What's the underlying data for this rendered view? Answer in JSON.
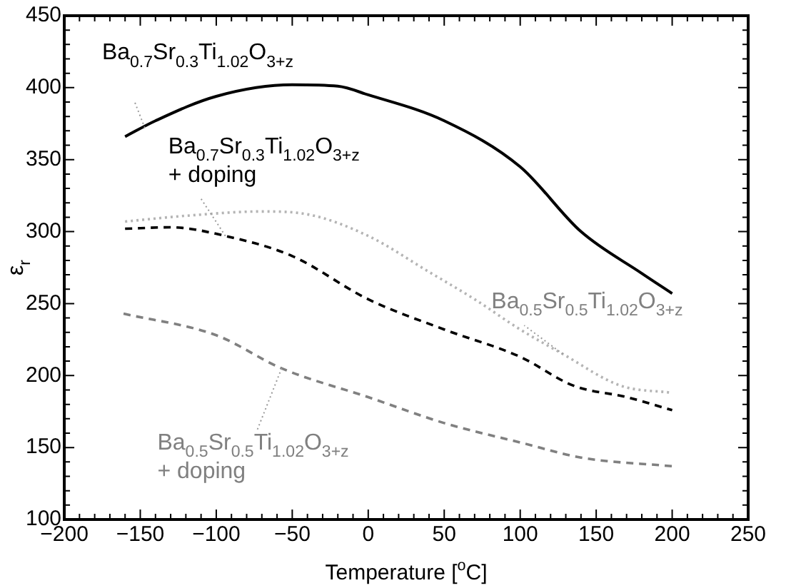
{
  "chart_data": {
    "type": "line",
    "xlabel": "Temperature [$^{o}$C]",
    "ylabel": "ε$_{r}$",
    "xlim": [
      -200,
      250
    ],
    "xticks": [
      -200,
      -150,
      -100,
      -50,
      0,
      50,
      100,
      150,
      200,
      250
    ],
    "ylim": [
      100,
      450
    ],
    "yticks": [
      100,
      150,
      200,
      250,
      300,
      350,
      400,
      450
    ],
    "grid": false,
    "legend": false,
    "marker": "none",
    "series": [
      {
        "color": "#000000",
        "line_style": "solid",
        "x": [
          -160,
          -140,
          -100,
          -50,
          -20,
          0,
          50,
          100,
          140,
          180,
          200
        ],
        "values": [
          366,
          377,
          394,
          402,
          401,
          395,
          377,
          345,
          300,
          271,
          257
        ]
      },
      {
        "color": "#000000",
        "line_style": "dashed",
        "x": [
          -160,
          -130,
          -94,
          -50,
          0,
          50,
          100,
          135,
          170,
          200
        ],
        "values": [
          302,
          303,
          297,
          283,
          253,
          232,
          213,
          193,
          185,
          176
        ]
      },
      {
        "color": "#b4b4b4",
        "line_style": "dotted",
        "x": [
          -160,
          -120,
          -70,
          -40,
          0,
          40,
          70,
          100,
          128,
          166,
          200
        ],
        "values": [
          307,
          311,
          314,
          312,
          297,
          272,
          253,
          232,
          215,
          193,
          188
        ]
      },
      {
        "color": "#808080",
        "line_style": "dashed",
        "x": [
          -161,
          -100,
          -57,
          0,
          50,
          102,
          140,
          200
        ],
        "values": [
          243,
          228,
          205,
          185,
          167,
          153,
          143,
          137
        ]
      }
    ],
    "annotations": [
      {
        "text": "Ba$_{0.7}$Sr$_{0.3}$Ti$_{1.02}$O$_{3+z}$",
        "x": -147,
        "y": 372
      },
      "Ba$_{0.7}$Sr$_{0.3}$Ti$_{1.02}$O$_{3+z}$",
      {
        "text": "+ doping",
        "x": -94,
        "y": 297
      },
      {
        "text": "Ba$_{0.5}$Sr$_{0.5}$Ti$_{1.02}$O$_{3+z}$",
        "x": 128,
        "y": 215
      },
      {
        "text": "Ba$_{0.5}$Sr$_{0.5}$Ti$_{1.02}$O$_{3+z}$",
        "x": -57,
        "y": 205
      },
      "+ doping"
    ]
  }
}
